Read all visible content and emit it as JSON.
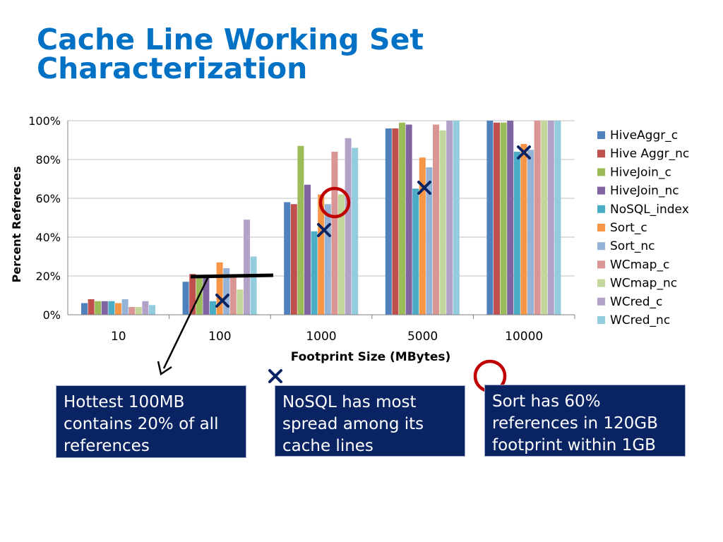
{
  "title_lines": [
    "Cache Line Working Set",
    "Characterization"
  ],
  "chart_data": {
    "type": "bar",
    "xlabel": "Footprint Size (MBytes)",
    "ylabel": "Percent Refereces",
    "ylim": [
      0,
      100
    ],
    "yticks": [
      "0%",
      "20%",
      "40%",
      "60%",
      "80%",
      "100%"
    ],
    "grid": true,
    "legend_position": "right",
    "categories": [
      "10",
      "100",
      "1000",
      "5000",
      "10000"
    ],
    "series": [
      {
        "name": "HiveAggr_c",
        "color": "#4f81bd",
        "values": [
          6,
          17,
          58,
          96,
          100
        ]
      },
      {
        "name": "Hive Aggr_nc",
        "color": "#c0504d",
        "values": [
          8,
          21,
          57,
          96,
          99
        ]
      },
      {
        "name": "HiveJoin_c",
        "color": "#9bbb59",
        "values": [
          7,
          19,
          87,
          99,
          99
        ]
      },
      {
        "name": "HiveJoin_nc",
        "color": "#8064a2",
        "values": [
          7,
          20,
          67,
          98,
          100
        ]
      },
      {
        "name": "NoSQL_index",
        "color": "#4bacc6",
        "values": [
          7,
          7,
          43,
          65,
          84
        ]
      },
      {
        "name": "Sort_c",
        "color": "#f79646",
        "values": [
          6,
          27,
          62,
          81,
          88
        ]
      },
      {
        "name": "Sort_nc",
        "color": "#95b3d7",
        "values": [
          8,
          24,
          57,
          76,
          85
        ]
      },
      {
        "name": "WCmap_c",
        "color": "#d99694",
        "values": [
          4,
          20,
          84,
          98,
          100
        ]
      },
      {
        "name": "WCmap_nc",
        "color": "#c3d69b",
        "values": [
          4,
          13,
          62,
          95,
          100
        ]
      },
      {
        "name": "WCred_c",
        "color": "#b3a2c7",
        "values": [
          7,
          49,
          91,
          100,
          100
        ]
      },
      {
        "name": "WCred_nc",
        "color": "#93cddd",
        "values": [
          5,
          30,
          86,
          100,
          100
        ]
      }
    ]
  },
  "callouts": [
    [
      "Hottest 100MB",
      "contains 20% of all",
      "references"
    ],
    [
      "NoSQL has most",
      "spread among its",
      "cache lines"
    ],
    [
      "Sort has 60%",
      "references in 120GB",
      "footprint within 1GB"
    ]
  ],
  "annotation_colors": {
    "cross": "#0a2463",
    "circle": "#c00000",
    "marker": "#000000"
  }
}
